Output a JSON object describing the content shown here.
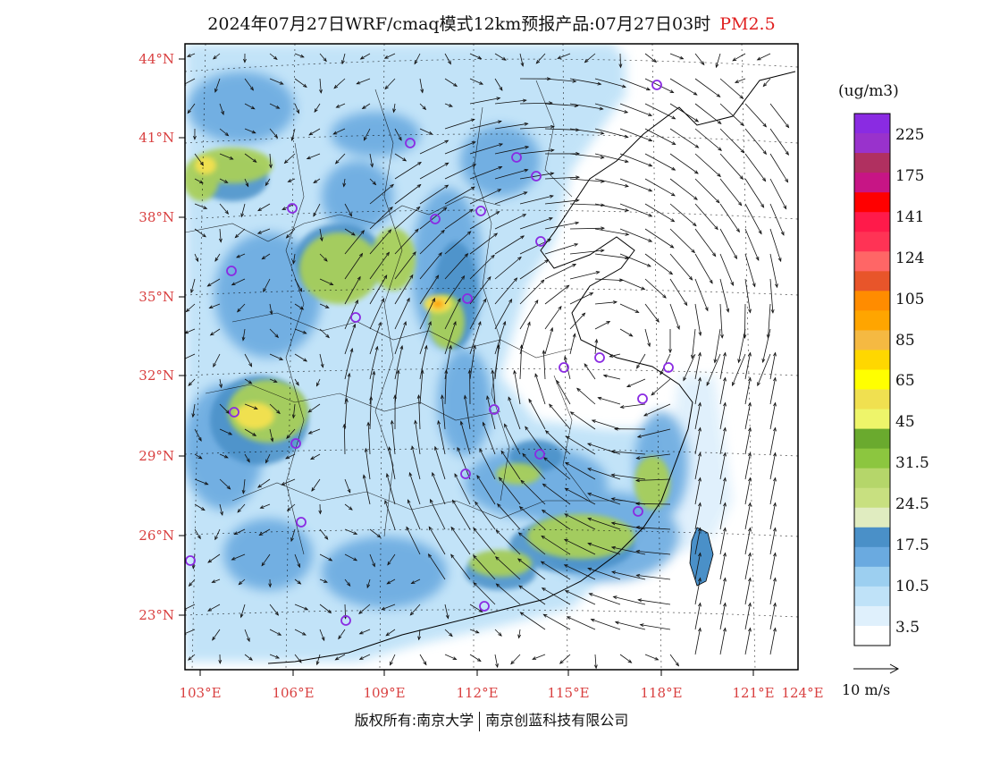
{
  "title": {
    "main": "2024年07月27日WRF/cmaq模式12km预报产品:07月27日03时",
    "species": "PM2.5"
  },
  "lat_labels": [
    "44°N",
    "41°N",
    "38°N",
    "35°N",
    "32°N",
    "29°N",
    "26°N",
    "23°N"
  ],
  "lon_labels": [
    "103°E",
    "106°E",
    "109°E",
    "112°E",
    "115°E",
    "118°E",
    "121°E",
    "124°E"
  ],
  "colorbar": {
    "unit": "(ug/m3)",
    "labels": [
      "225",
      "175",
      "141",
      "124",
      "105",
      "85",
      "65",
      "45",
      "31.5",
      "24.5",
      "17.5",
      "10.5",
      "3.5"
    ],
    "colors": [
      "#8a2be2",
      "#9932cc",
      "#b03060",
      "#c71585",
      "#ff0000",
      "#ff1a4a",
      "#ff3355",
      "#ff6666",
      "#e8552a",
      "#ff8c00",
      "#ffa500",
      "#f5b942",
      "#ffd700",
      "#ffff00",
      "#f0e050",
      "#eef56a",
      "#6aaa2e",
      "#8cc63f",
      "#b5d66a",
      "#c8e080",
      "#e0ecc0",
      "#4a90c8",
      "#6aaae0",
      "#9ccff0",
      "#bfe2f8",
      "#dff0fc",
      "#ffffff"
    ]
  },
  "vector_legend": {
    "label": "10 m/s"
  },
  "map_colors": {
    "land_low": "#bfe2f8",
    "land_mid": "#6aaae0",
    "land_high": "#4a90c8",
    "green": "#a8cf5a",
    "yellow": "#f0e050"
  },
  "footer": {
    "left": "版权所有:南京大学",
    "right": "南京创蓝科技有限公司"
  }
}
